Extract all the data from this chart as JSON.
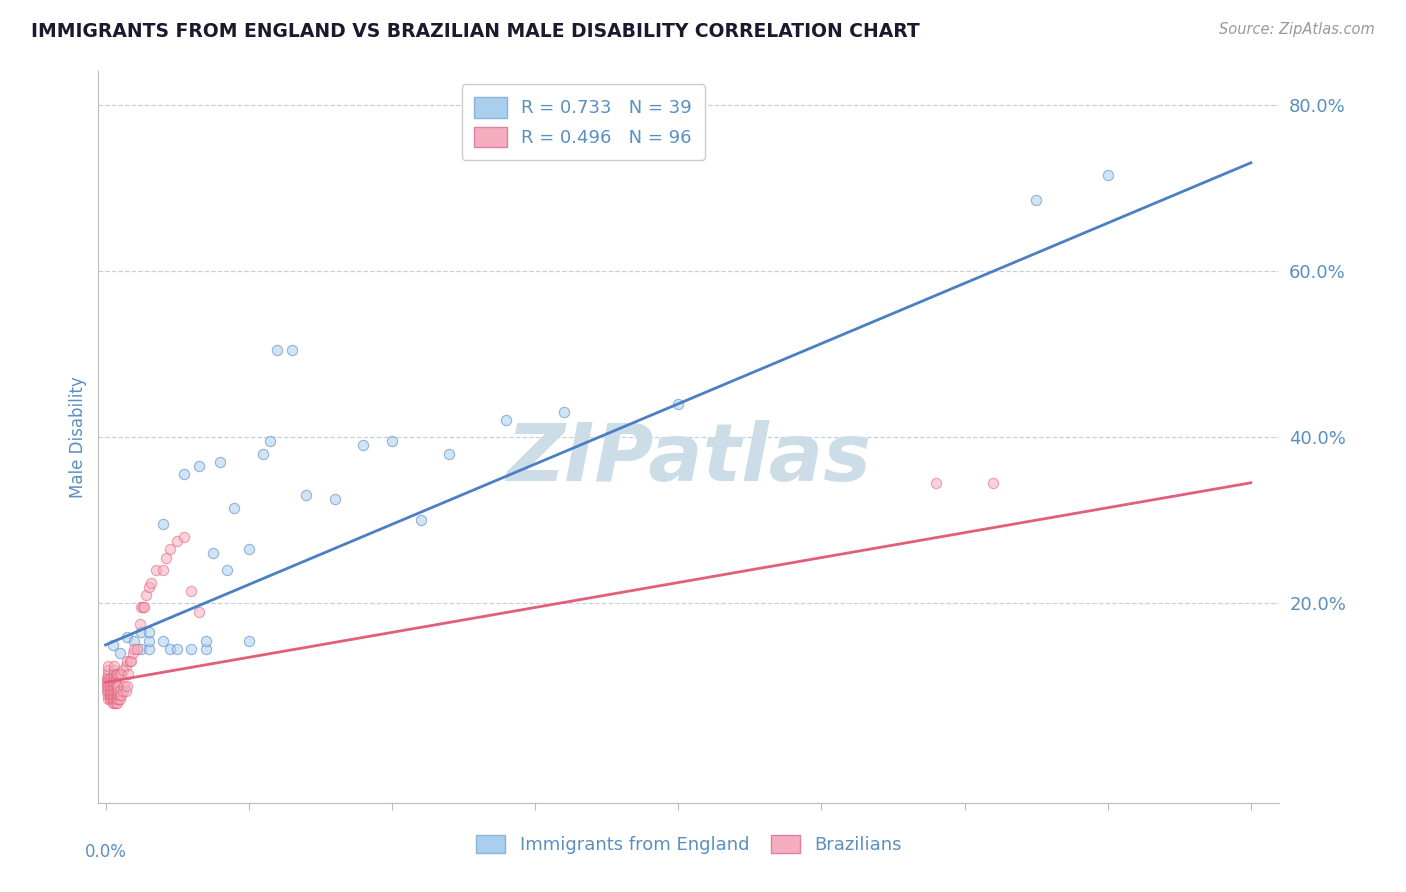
{
  "title": "IMMIGRANTS FROM ENGLAND VS BRAZILIAN MALE DISABILITY CORRELATION CHART",
  "source": "Source: ZipAtlas.com",
  "ylabel": "Male Disability",
  "watermark": "ZIPatlas",
  "xlim": [
    -0.005,
    0.82
  ],
  "ylim": [
    -0.04,
    0.84
  ],
  "yticks": [
    0.2,
    0.4,
    0.6,
    0.8
  ],
  "xticks": [
    0.0,
    0.1,
    0.2,
    0.3,
    0.4,
    0.5,
    0.6,
    0.7,
    0.8
  ],
  "legend_england_R": "R = 0.733",
  "legend_england_N": "N = 39",
  "legend_brazil_R": "R = 0.496",
  "legend_brazil_N": "N = 96",
  "color_england": "#aacfee",
  "color_brazil": "#f5adc0",
  "color_line_england": "#4a7fc1",
  "color_line_brazil": "#e0607a",
  "color_title": "#1a1a2e",
  "color_axis_labels": "#5a8fc0",
  "color_watermark": "#ccdde8",
  "england_scatter_x": [
    0.005,
    0.01,
    0.015,
    0.02,
    0.025,
    0.025,
    0.03,
    0.03,
    0.03,
    0.04,
    0.04,
    0.045,
    0.05,
    0.055,
    0.06,
    0.065,
    0.07,
    0.07,
    0.075,
    0.08,
    0.085,
    0.09,
    0.1,
    0.1,
    0.11,
    0.115,
    0.12,
    0.13,
    0.14,
    0.16,
    0.18,
    0.2,
    0.22,
    0.24,
    0.28,
    0.32,
    0.4,
    0.65,
    0.7
  ],
  "england_scatter_y": [
    0.15,
    0.14,
    0.16,
    0.155,
    0.145,
    0.165,
    0.145,
    0.155,
    0.165,
    0.155,
    0.295,
    0.145,
    0.145,
    0.355,
    0.145,
    0.365,
    0.145,
    0.155,
    0.26,
    0.37,
    0.24,
    0.315,
    0.155,
    0.265,
    0.38,
    0.395,
    0.505,
    0.505,
    0.33,
    0.325,
    0.39,
    0.395,
    0.3,
    0.38,
    0.42,
    0.43,
    0.44,
    0.685,
    0.715
  ],
  "brazil_scatter_x": [
    0.001,
    0.001,
    0.001,
    0.001,
    0.002,
    0.002,
    0.002,
    0.002,
    0.002,
    0.002,
    0.002,
    0.002,
    0.002,
    0.003,
    0.003,
    0.003,
    0.003,
    0.003,
    0.004,
    0.004,
    0.004,
    0.004,
    0.004,
    0.004,
    0.005,
    0.005,
    0.005,
    0.005,
    0.005,
    0.005,
    0.005,
    0.006,
    0.006,
    0.006,
    0.006,
    0.006,
    0.006,
    0.006,
    0.006,
    0.006,
    0.006,
    0.007,
    0.007,
    0.007,
    0.007,
    0.007,
    0.007,
    0.007,
    0.007,
    0.008,
    0.008,
    0.008,
    0.008,
    0.008,
    0.008,
    0.009,
    0.009,
    0.009,
    0.009,
    0.009,
    0.01,
    0.01,
    0.01,
    0.01,
    0.011,
    0.011,
    0.012,
    0.012,
    0.013,
    0.014,
    0.014,
    0.015,
    0.015,
    0.016,
    0.017,
    0.018,
    0.019,
    0.02,
    0.022,
    0.024,
    0.025,
    0.026,
    0.027,
    0.028,
    0.03,
    0.032,
    0.035,
    0.04,
    0.042,
    0.045,
    0.05,
    0.055,
    0.06,
    0.065,
    0.58,
    0.62
  ],
  "brazil_scatter_y": [
    0.095,
    0.1,
    0.105,
    0.11,
    0.085,
    0.09,
    0.095,
    0.1,
    0.105,
    0.11,
    0.115,
    0.12,
    0.125,
    0.085,
    0.09,
    0.095,
    0.1,
    0.11,
    0.085,
    0.09,
    0.095,
    0.1,
    0.105,
    0.11,
    0.08,
    0.085,
    0.09,
    0.095,
    0.1,
    0.105,
    0.11,
    0.08,
    0.085,
    0.09,
    0.095,
    0.1,
    0.105,
    0.11,
    0.115,
    0.12,
    0.125,
    0.08,
    0.085,
    0.09,
    0.095,
    0.1,
    0.105,
    0.11,
    0.115,
    0.08,
    0.085,
    0.09,
    0.095,
    0.1,
    0.115,
    0.085,
    0.09,
    0.095,
    0.1,
    0.115,
    0.085,
    0.09,
    0.095,
    0.115,
    0.09,
    0.115,
    0.095,
    0.12,
    0.1,
    0.095,
    0.125,
    0.1,
    0.13,
    0.115,
    0.13,
    0.13,
    0.14,
    0.145,
    0.145,
    0.175,
    0.195,
    0.195,
    0.195,
    0.21,
    0.22,
    0.225,
    0.24,
    0.24,
    0.255,
    0.265,
    0.275,
    0.28,
    0.215,
    0.19,
    0.345,
    0.345
  ],
  "england_trend_x": [
    0.0,
    0.8
  ],
  "england_trend_y": [
    0.15,
    0.73
  ],
  "brazil_trend_x": [
    0.0,
    0.8
  ],
  "brazil_trend_y": [
    0.105,
    0.345
  ],
  "background_color": "#ffffff",
  "grid_color": "#c5d0da",
  "scatter_size": 55,
  "scatter_alpha": 0.55,
  "scatter_linewidth": 0.8
}
